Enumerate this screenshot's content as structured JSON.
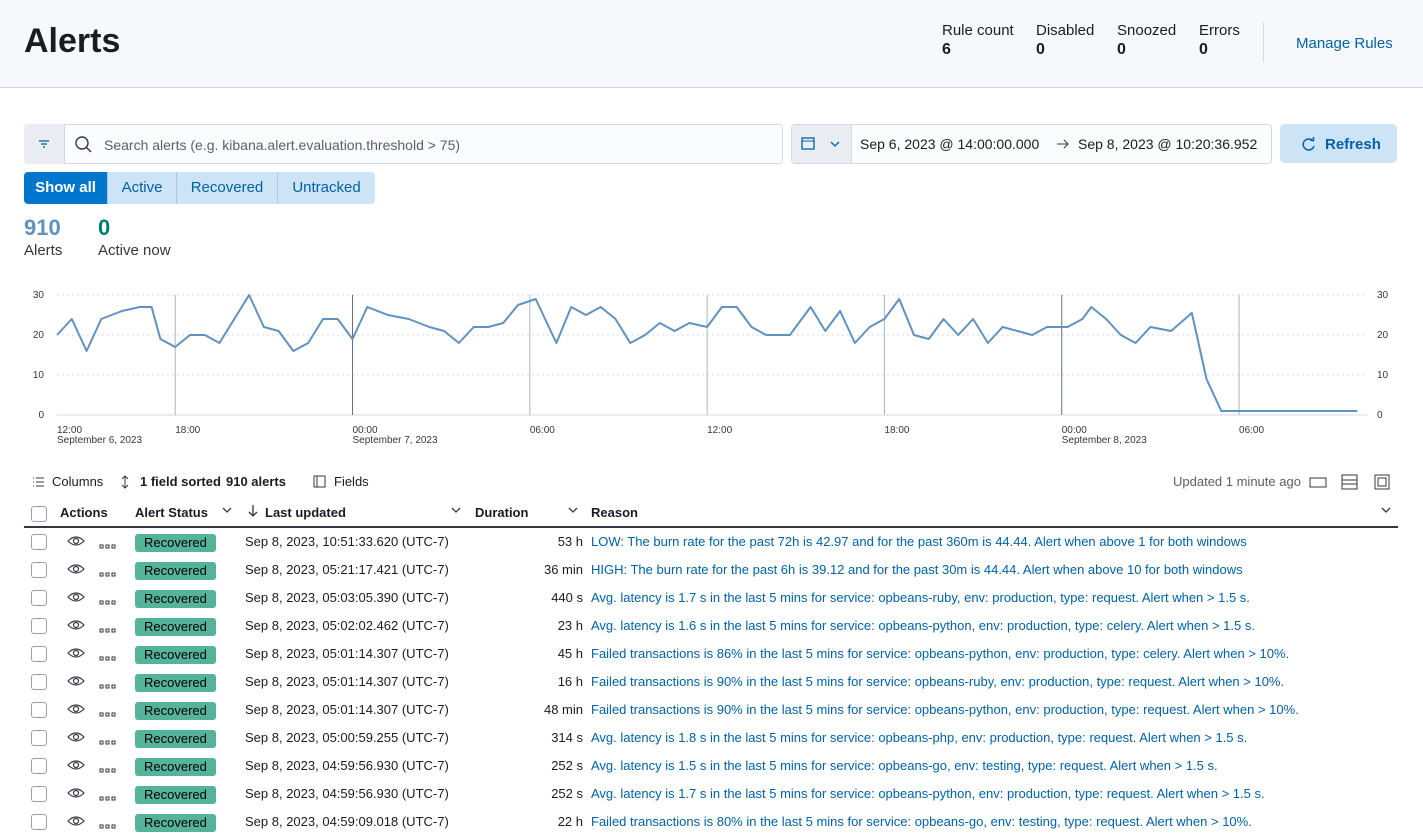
{
  "header": {
    "title": "Alerts",
    "stats": [
      {
        "label": "Rule count",
        "value": 6
      },
      {
        "label": "Disabled",
        "value": 0
      },
      {
        "label": "Snoozed",
        "value": 0
      },
      {
        "label": "Errors",
        "value": 0
      }
    ],
    "manage_rules": "Manage Rules"
  },
  "search": {
    "placeholder": "Search alerts (e.g. kibana.alert.evaluation.threshold > 75)",
    "date_start": "Sep 6, 2023 @ 14:00:00.000",
    "date_end": "Sep 8, 2023 @ 10:20:36.952",
    "refresh": "Refresh"
  },
  "tabs": [
    "Show all",
    "Active",
    "Recovered",
    "Untracked"
  ],
  "summary": [
    {
      "value": 910,
      "label": "Alerts"
    },
    {
      "value": 0,
      "label": "Active now"
    }
  ],
  "chart": {
    "type": "line",
    "color": "#6092c0",
    "x": [
      14,
      14.5,
      15,
      15.5,
      16.2,
      16.8,
      17.2,
      17.5,
      18,
      18.5,
      19,
      19.5,
      20,
      20.5,
      21,
      21.5,
      22,
      22.5,
      23,
      23.5,
      24,
      24.5,
      25.2,
      25.9,
      26.6,
      27.1,
      27.6,
      28.1,
      28.6,
      29.1,
      29.6,
      30.2,
      30.9,
      31.4,
      31.9,
      32.4,
      32.9,
      33.4,
      33.9,
      34.4,
      34.9,
      35.4,
      36,
      36.5,
      37,
      37.5,
      38,
      38.8,
      39.5,
      40,
      40.5,
      41,
      41.5,
      42,
      42.5,
      43,
      43.5,
      44,
      44.5,
      45,
      45.5,
      46,
      46.5,
      47,
      47.5,
      48.2,
      48.7,
      49,
      49.5,
      50,
      50.5,
      51,
      51.7,
      52.4,
      52.9,
      53.4,
      54.4,
      55.8,
      58
    ],
    "values": [
      20,
      24,
      16,
      24,
      26,
      27,
      27,
      19,
      17,
      20,
      20,
      18,
      24,
      30,
      22,
      21,
      16,
      18,
      24,
      24,
      19,
      27,
      25,
      24,
      22,
      21,
      18,
      22,
      22,
      23,
      27.5,
      29,
      18,
      27,
      25,
      27,
      24,
      18,
      20,
      23,
      21,
      23,
      22,
      27,
      27,
      22,
      20,
      20,
      27,
      21,
      26,
      18,
      22,
      24,
      29,
      20,
      19,
      24,
      20,
      24,
      18,
      22,
      21,
      20,
      22,
      22,
      24,
      27,
      24,
      20,
      18,
      22,
      21,
      25.5,
      9,
      1,
      1,
      1,
      1
    ],
    "xlim": [
      14,
      58.33
    ],
    "ylim": [
      0,
      30
    ],
    "yticks": [
      0,
      10,
      20,
      30
    ],
    "xticks": [
      {
        "value": 12,
        "label": "12:00"
      },
      {
        "value": 18,
        "label": "18:00"
      },
      {
        "value": 24,
        "label": "00:00"
      },
      {
        "value": 30,
        "label": "06:00"
      },
      {
        "value": 36,
        "label": "12:00"
      },
      {
        "value": 42,
        "label": "18:00"
      },
      {
        "value": 48,
        "label": "00:00"
      },
      {
        "value": 54,
        "label": "06:00"
      }
    ],
    "x_day_labels": [
      {
        "value": 12,
        "label": "September 6, 2023"
      },
      {
        "value": 24,
        "label": "September 7, 2023"
      },
      {
        "value": 48,
        "label": "September 8, 2023"
      }
    ]
  },
  "toolbar": {
    "columns": "Columns",
    "sorted": "1 field sorted",
    "count": "910 alerts",
    "fields": "Fields",
    "updated": "Updated 1 minute ago"
  },
  "table": {
    "headers": [
      "Actions",
      "Alert Status",
      "Last updated",
      "Duration",
      "Reason"
    ],
    "rows": [
      [
        "Recovered",
        "Sep 8, 2023, 10:51:33.620 (UTC-7)",
        "53 h",
        "LOW: The burn rate for the past 72h is 42.97 and for the past 360m is 44.44. Alert when above 1 for both windows"
      ],
      [
        "Recovered",
        "Sep 8, 2023, 05:21:17.421 (UTC-7)",
        "36 min",
        "HIGH: The burn rate for the past 6h is 39.12 and for the past 30m is 44.44. Alert when above 10 for both windows"
      ],
      [
        "Recovered",
        "Sep 8, 2023, 05:03:05.390 (UTC-7)",
        "440 s",
        "Avg. latency is 1.7 s in the last 5 mins for service: opbeans-ruby, env: production, type: request. Alert when > 1.5 s."
      ],
      [
        "Recovered",
        "Sep 8, 2023, 05:02:02.462 (UTC-7)",
        "23 h",
        "Avg. latency is 1.6 s in the last 5 mins for service: opbeans-python, env: production, type: celery. Alert when > 1.5 s."
      ],
      [
        "Recovered",
        "Sep 8, 2023, 05:01:14.307 (UTC-7)",
        "45 h",
        "Failed transactions is 86% in the last 5 mins for service: opbeans-python, env: production, type: celery. Alert when > 10%."
      ],
      [
        "Recovered",
        "Sep 8, 2023, 05:01:14.307 (UTC-7)",
        "16 h",
        "Failed transactions is 90% in the last 5 mins for service: opbeans-ruby, env: production, type: request. Alert when > 10%."
      ],
      [
        "Recovered",
        "Sep 8, 2023, 05:01:14.307 (UTC-7)",
        "48 min",
        "Failed transactions is 90% in the last 5 mins for service: opbeans-python, env: production, type: request. Alert when > 10%."
      ],
      [
        "Recovered",
        "Sep 8, 2023, 05:00:59.255 (UTC-7)",
        "314 s",
        "Avg. latency is 1.8 s in the last 5 mins for service: opbeans-php, env: production, type: request. Alert when > 1.5 s."
      ],
      [
        "Recovered",
        "Sep 8, 2023, 04:59:56.930 (UTC-7)",
        "252 s",
        "Avg. latency is 1.5 s in the last 5 mins for service: opbeans-go, env: testing, type: request. Alert when > 1.5 s."
      ],
      [
        "Recovered",
        "Sep 8, 2023, 04:59:56.930 (UTC-7)",
        "252 s",
        "Avg. latency is 1.7 s in the last 5 mins for service: opbeans-python, env: production, type: request. Alert when > 1.5 s."
      ],
      [
        "Recovered",
        "Sep 8, 2023, 04:59:09.018 (UTC-7)",
        "22 h",
        "Failed transactions is 80% in the last 5 mins for service: opbeans-go, env: testing, type: request. Alert when > 10%."
      ]
    ]
  }
}
